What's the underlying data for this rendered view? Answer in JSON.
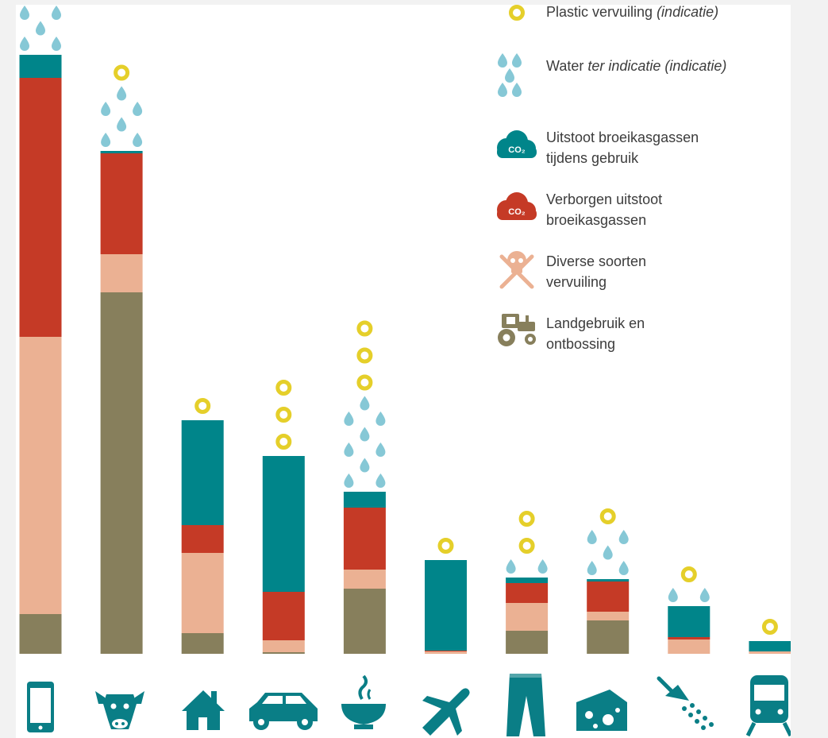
{
  "colors": {
    "land": "#877f5c",
    "pollution": "#ebb193",
    "hidden": "#c53a26",
    "use": "#00858a",
    "water": "#86c8d6",
    "plastic": "#e5cf2a",
    "icon": "#0a7e86"
  },
  "legend": {
    "plastic": {
      "prefix": "Plastic vervuiling ",
      "italic": "(indicatie)"
    },
    "water": {
      "prefix": "Water ",
      "italic": "ter indicatie (indicatie)"
    },
    "use": {
      "line1": "Uitstoot broeikasgassen",
      "line2": "tijdens gebruik",
      "badge": "CO₂"
    },
    "hidden": {
      "line1": "Verborgen uitstoot",
      "line2": "broeikasgassen",
      "badge": "CO₂"
    },
    "pollution": {
      "line1": "Diverse soorten",
      "line2": "vervuiling"
    },
    "land": {
      "line1": "Landgebruik en",
      "line2": "ontbossing"
    }
  },
  "chart_data": {
    "type": "bar",
    "stacked": true,
    "categories": [
      "smartphone",
      "cow",
      "house",
      "car",
      "bowl",
      "airplane",
      "jeans",
      "cheese",
      "shower",
      "train"
    ],
    "category_icons": [
      "phone-icon",
      "cow-icon",
      "house-icon",
      "car-icon",
      "bowl-icon",
      "airplane-icon",
      "jeans-icon",
      "cheese-icon",
      "shower-icon",
      "train-icon"
    ],
    "series": [
      {
        "key": "land",
        "values": [
          50,
          455,
          26,
          2,
          82,
          0,
          29,
          42,
          0,
          0
        ]
      },
      {
        "key": "pollution",
        "values": [
          349,
          48,
          101,
          15,
          24,
          3,
          35,
          11,
          18,
          3
        ]
      },
      {
        "key": "hidden",
        "values": [
          326,
          127,
          35,
          61,
          78,
          1,
          25,
          38,
          3,
          0
        ]
      },
      {
        "key": "use",
        "values": [
          29,
          3,
          132,
          171,
          20,
          114,
          7,
          3,
          39,
          13
        ]
      }
    ],
    "plastic_markers": [
      0,
      1,
      1,
      3,
      3,
      1,
      2,
      1,
      1,
      1
    ],
    "water_drop_rows": [
      3,
      4,
      0,
      0,
      6,
      0,
      1,
      3,
      1,
      0
    ],
    "ylim": [
      0,
      754
    ],
    "grid": false,
    "legend_position": "top-right"
  }
}
